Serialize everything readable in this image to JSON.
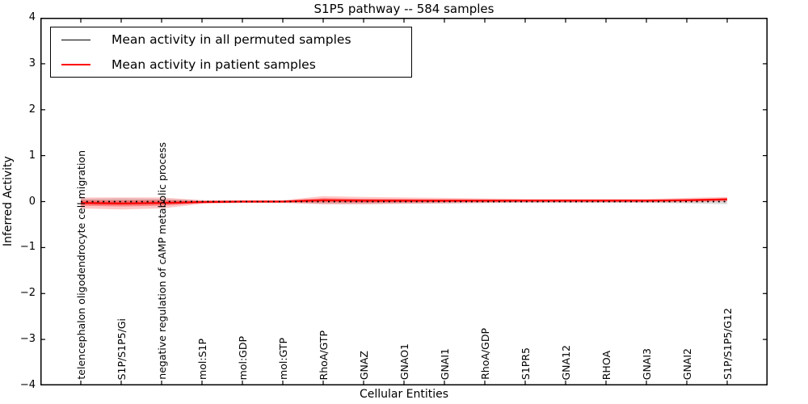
{
  "figure": {
    "title": "S1P5 pathway -- 584 samples"
  },
  "axes": {
    "ylabel": "Inferred Activity",
    "xlabel": "Cellular Entities",
    "y_tick_labels": [
      "4",
      "3",
      "2",
      "1",
      "0",
      "−1",
      "−2",
      "−3",
      "−4"
    ],
    "y_tick_values": [
      4,
      3,
      2,
      1,
      0,
      -1,
      -2,
      -3,
      -4
    ]
  },
  "legend": {
    "items": [
      {
        "label": "Mean activity in all permuted samples",
        "color": "#000000"
      },
      {
        "label": "Mean activity in patient samples",
        "color": "#ff0000"
      }
    ]
  },
  "colors": {
    "permuted_line": "#000000",
    "patient_line": "#ff0000",
    "patient_band": "rgba(255,0,0,0.22)",
    "patient_band_inner": "rgba(255,0,0,0.35)",
    "permuted_band": "rgba(100,100,100,0.22)",
    "frame": "#000000"
  },
  "chart_data": {
    "type": "line",
    "title": "S1P5 pathway -- 584 samples",
    "xlabel": "Cellular Entities",
    "ylabel": "Inferred Activity",
    "ylim": [
      -4,
      4
    ],
    "xlim": [
      -1,
      17
    ],
    "grid": false,
    "legend_position": "upper left",
    "categories": [
      "telencephalon oligodendrocyte cell migration",
      "S1P/S1P5/Gi",
      "negative regulation of cAMP metabolic process",
      "mol:S1P",
      "mol:GDP",
      "mol:GTP",
      "RhoA/GTP",
      "GNAZ",
      "GNAO1",
      "GNAI1",
      "RhoA/GDP",
      "S1PR5",
      "GNA12",
      "RHOA",
      "GNAI3",
      "GNAI2",
      "S1P/S1P5/G12"
    ],
    "series": [
      {
        "name": "Mean activity in all permuted samples",
        "color": "#000000",
        "style": "dotted",
        "values": [
          0,
          0,
          0,
          0,
          0,
          0,
          0,
          0,
          0,
          0,
          0,
          0,
          0,
          0,
          0,
          0,
          0
        ],
        "band_halfwidth": [
          0.06,
          0.07,
          0.06,
          0.03,
          0.02,
          0.02,
          0.05,
          0.05,
          0.04,
          0.04,
          0.03,
          0.03,
          0.03,
          0.03,
          0.03,
          0.04,
          0.06
        ]
      },
      {
        "name": "Mean activity in patient samples",
        "color": "#ff0000",
        "style": "solid",
        "values": [
          -0.03,
          -0.04,
          -0.03,
          -0.01,
          0,
          0,
          0.03,
          0.02,
          0.02,
          0.02,
          0.02,
          0.02,
          0.02,
          0.02,
          0.02,
          0.03,
          0.05
        ],
        "band_halfwidth": [
          0.12,
          0.13,
          0.12,
          0.04,
          0.03,
          0.03,
          0.09,
          0.08,
          0.07,
          0.06,
          0.05,
          0.04,
          0.04,
          0.04,
          0.04,
          0.05,
          0.05
        ]
      }
    ]
  }
}
